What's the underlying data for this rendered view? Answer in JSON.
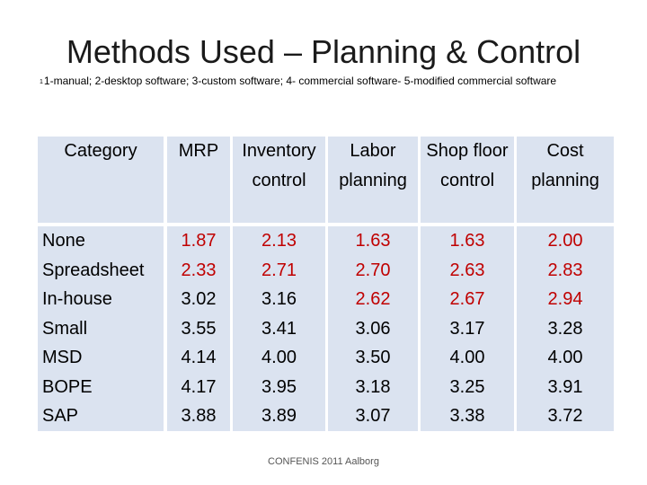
{
  "slide": {
    "title": "Methods Used – Planning & Control",
    "subtitle_mark": "1",
    "subtitle": "1-manual; 2-desktop software; 3-custom software; 4- commercial software- 5-modified commercial software",
    "footer": "CONFENIS 2011 Aalborg"
  },
  "table": {
    "headers": [
      "Category",
      "MRP",
      "Inventory control",
      "Labor planning",
      "Shop floor control",
      "Cost planning"
    ],
    "categories": [
      "None",
      "Spreadsheet",
      "In-house",
      "Small",
      "MSD",
      "BOPE",
      "SAP"
    ],
    "columns": {
      "mrp": [
        "1.87",
        "2.33",
        "3.02",
        "3.55",
        "4.14",
        "4.17",
        "3.88"
      ],
      "inventory": [
        "2.13",
        "2.71",
        "3.16",
        "3.41",
        "4.00",
        "3.95",
        "3.89"
      ],
      "labor": [
        "1.63",
        "2.70",
        "2.62",
        "3.06",
        "3.50",
        "3.18",
        "3.07"
      ],
      "shop_floor": [
        "1.63",
        "2.63",
        "2.67",
        "3.17",
        "4.00",
        "3.25",
        "3.38"
      ],
      "cost": [
        "2.00",
        "2.83",
        "2.94",
        "3.28",
        "4.00",
        "3.91",
        "3.72"
      ]
    },
    "highlight_color": "#c00000",
    "cell_background": "#dbe3f0"
  }
}
